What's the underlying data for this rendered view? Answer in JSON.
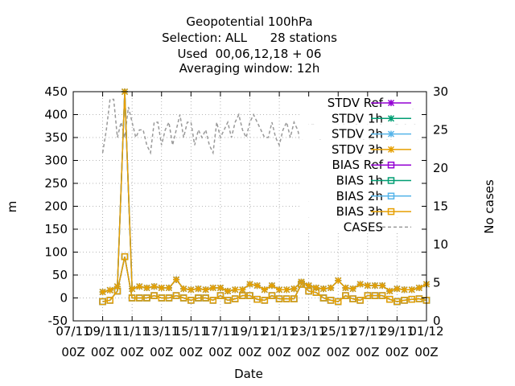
{
  "chart_data": {
    "type": "line",
    "title_lines": [
      "Geopotential 100hPa",
      "Selection: ALL      28 stations",
      "Used  00,06,12,18 + 06",
      "Averaging window: 12h"
    ],
    "xlabel": "Date",
    "ylabel": "m",
    "y2label": "No cases",
    "ylim": [
      -50,
      450
    ],
    "y2lim": [
      0,
      30
    ],
    "yticks": [
      "-50",
      "0",
      "50",
      "100",
      "150",
      "200",
      "250",
      "300",
      "350",
      "400",
      "450"
    ],
    "y2ticks": [
      "0",
      "5",
      "10",
      "15",
      "20",
      "25",
      "30"
    ],
    "xtick_labels": [
      {
        "line1": "07/11",
        "line2": "00Z"
      },
      {
        "line1": "09/11",
        "line2": "00Z"
      },
      {
        "line1": "11/11",
        "line2": "00Z"
      },
      {
        "line1": "13/11",
        "line2": "00Z"
      },
      {
        "line1": "15/11",
        "line2": "00Z"
      },
      {
        "line1": "17/11",
        "line2": "00Z"
      },
      {
        "line1": "19/11",
        "line2": "00Z"
      },
      {
        "line1": "21/11",
        "line2": "00Z"
      },
      {
        "line1": "23/11",
        "line2": "00Z"
      },
      {
        "line1": "25/11",
        "line2": "00Z"
      },
      {
        "line1": "27/11",
        "line2": "00Z"
      },
      {
        "line1": "29/11",
        "line2": "00Z"
      },
      {
        "line1": "01/12",
        "line2": "00Z"
      }
    ],
    "x_start_day": 7,
    "x_end_day": 31,
    "grid": true,
    "legend_position": "top-right",
    "stdv_days": [
      9.0,
      9.5,
      10.0,
      10.5,
      11.0,
      11.5,
      12.0,
      12.5,
      13.0,
      13.5,
      14.0,
      14.5,
      15.0,
      15.5,
      16.0,
      16.5,
      17.0,
      17.5,
      18.0,
      18.5,
      19.0,
      19.5,
      20.0,
      20.5,
      21.0,
      21.5,
      22.0,
      22.5,
      23.0,
      23.5,
      24.0,
      24.5,
      25.0,
      25.5,
      26.0,
      26.5,
      27.0,
      27.5,
      28.0,
      28.5,
      29.0,
      29.5,
      30.0,
      30.5,
      31.0
    ],
    "stdv_values": [
      13,
      17,
      25,
      450,
      20,
      25,
      22,
      25,
      22,
      22,
      40,
      20,
      18,
      20,
      18,
      22,
      22,
      15,
      18,
      18,
      30,
      27,
      18,
      27,
      18,
      18,
      20,
      35,
      27,
      22,
      20,
      22,
      38,
      22,
      20,
      30,
      27,
      27,
      27,
      15,
      20,
      18,
      18,
      22,
      30
    ],
    "bias_days": [
      9.0,
      9.5,
      10.0,
      10.5,
      11.0,
      11.5,
      12.0,
      12.5,
      13.0,
      13.5,
      14.0,
      14.5,
      15.0,
      15.5,
      16.0,
      16.5,
      17.0,
      17.5,
      18.0,
      18.5,
      19.0,
      19.5,
      20.0,
      20.5,
      21.0,
      21.5,
      22.0,
      22.5,
      23.0,
      23.5,
      24.0,
      24.5,
      25.0,
      25.5,
      26.0,
      26.5,
      27.0,
      27.5,
      28.0,
      28.5,
      29.0,
      29.5,
      30.0,
      30.5,
      31.0
    ],
    "bias_values": [
      -8,
      -5,
      15,
      90,
      0,
      0,
      0,
      5,
      0,
      0,
      5,
      0,
      -5,
      0,
      0,
      -5,
      5,
      -5,
      -2,
      5,
      5,
      -3,
      -5,
      5,
      -2,
      -2,
      -2,
      30,
      15,
      12,
      0,
      -5,
      -8,
      5,
      -2,
      -5,
      5,
      5,
      5,
      -3,
      -8,
      -5,
      -3,
      -2,
      -5
    ],
    "cases_days": [
      9.0,
      9.25,
      9.5,
      9.75,
      10.0,
      10.25,
      10.5,
      10.75,
      11.0,
      11.25,
      11.5,
      11.75,
      12.0,
      12.25,
      12.5,
      12.75,
      13.0,
      13.25,
      13.5,
      13.75,
      14.0,
      14.25,
      14.5,
      14.75,
      15.0,
      15.25,
      15.5,
      15.75,
      16.0,
      16.25,
      16.5,
      16.75,
      17.0,
      17.25,
      17.5,
      17.75,
      18.0,
      18.25,
      18.5,
      18.75,
      19.0,
      19.25,
      19.5,
      19.75,
      20.0,
      20.25,
      20.5,
      20.75,
      21.0,
      21.25,
      21.5,
      21.75,
      22.0,
      22.25,
      22.5,
      22.75,
      23.0,
      23.25,
      23.5,
      23.75,
      24.0,
      24.25,
      24.5,
      24.75,
      25.0,
      25.25,
      25.5,
      25.75,
      26.0,
      26.25,
      26.5,
      26.75,
      27.0,
      27.25,
      27.5,
      27.75,
      28.0,
      28.25,
      28.5,
      28.75,
      29.0,
      29.25,
      29.5,
      29.75,
      30.0,
      30.25,
      30.5,
      30.75,
      31.0
    ],
    "cases_values": [
      22,
      25,
      29,
      29,
      24,
      26,
      24,
      28,
      26,
      24,
      25,
      25,
      23,
      22,
      26,
      26,
      23,
      25,
      26,
      23,
      25,
      27,
      24,
      26,
      26,
      23,
      25,
      24,
      25,
      23,
      22,
      26,
      24,
      25,
      26,
      24,
      26,
      27,
      25,
      24,
      26,
      27,
      26,
      25,
      24,
      24,
      26,
      24,
      23,
      25,
      26,
      24,
      26,
      25,
      23,
      25,
      24,
      26,
      25,
      24,
      21,
      23,
      24,
      23,
      25,
      24,
      27,
      23,
      24,
      26,
      21,
      24,
      25,
      23,
      24,
      27,
      25,
      24,
      23,
      25,
      26,
      24,
      25,
      28,
      29,
      25,
      23,
      24,
      25
    ],
    "legend": [
      {
        "label": "STDV Ref",
        "color": "#9400d3",
        "marker": "x"
      },
      {
        "label": "STDV 1h",
        "color": "#009e73",
        "marker": "x"
      },
      {
        "label": "STDV 2h",
        "color": "#56b4e9",
        "marker": "x"
      },
      {
        "label": "STDV 3h",
        "color": "#e69f00",
        "marker": "x"
      },
      {
        "label": "BIAS Ref",
        "color": "#9400d3",
        "marker": "square"
      },
      {
        "label": "BIAS 1h",
        "color": "#009e73",
        "marker": "square"
      },
      {
        "label": "BIAS 2h",
        "color": "#56b4e9",
        "marker": "square"
      },
      {
        "label": "BIAS 3h",
        "color": "#e69f00",
        "marker": "square"
      },
      {
        "label": "CASES",
        "color": "#999999",
        "marker": "dash"
      }
    ]
  }
}
